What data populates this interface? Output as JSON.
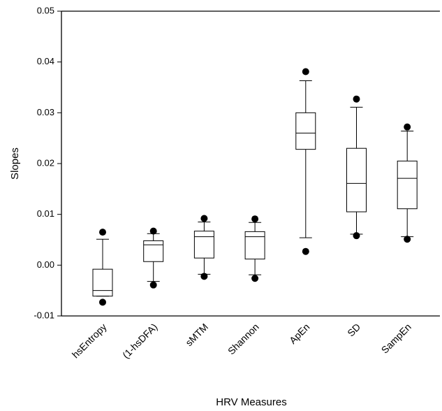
{
  "chart_data": {
    "type": "box",
    "y_label": "Slopes",
    "x_label": "HRV Measures",
    "categories": [
      "hsEntropy",
      "(1-hsDFA)",
      "sMTM",
      "Shannon",
      "ApEn",
      "SD",
      "SampEn"
    ],
    "boxes": [
      {
        "low": -0.0061,
        "q1": -0.0061,
        "median": -0.005,
        "q3": -0.0008,
        "high": 0.0051,
        "outliers": [
          0.0065,
          -0.0073
        ]
      },
      {
        "low": -0.0032,
        "q1": 0.0007,
        "median": 0.004,
        "q3": 0.0048,
        "high": 0.0062,
        "outliers": [
          0.0067,
          -0.0039
        ]
      },
      {
        "low": -0.0018,
        "q1": 0.0014,
        "median": 0.0056,
        "q3": 0.0067,
        "high": 0.0085,
        "outliers": [
          0.0092,
          -0.0022
        ]
      },
      {
        "low": -0.0019,
        "q1": 0.0012,
        "median": 0.0056,
        "q3": 0.0066,
        "high": 0.0084,
        "outliers": [
          0.0091,
          -0.0026
        ]
      },
      {
        "low": 0.0054,
        "q1": 0.0228,
        "median": 0.026,
        "q3": 0.03,
        "high": 0.0363,
        "outliers": [
          0.0381,
          0.0027
        ]
      },
      {
        "low": 0.0061,
        "q1": 0.0105,
        "median": 0.0161,
        "q3": 0.023,
        "high": 0.0311,
        "outliers": [
          0.0327,
          0.0058
        ]
      },
      {
        "low": 0.0056,
        "q1": 0.0111,
        "median": 0.0171,
        "q3": 0.0205,
        "high": 0.0264,
        "outliers": [
          0.0272,
          0.0051
        ]
      }
    ],
    "ylim": [
      -0.01,
      0.05
    ],
    "yticks": [
      -0.01,
      {
        "value": 0,
        "label": "0.00"
      },
      0.01,
      0.02,
      0.03,
      0.04,
      0.05
    ],
    "color": "#000000"
  }
}
